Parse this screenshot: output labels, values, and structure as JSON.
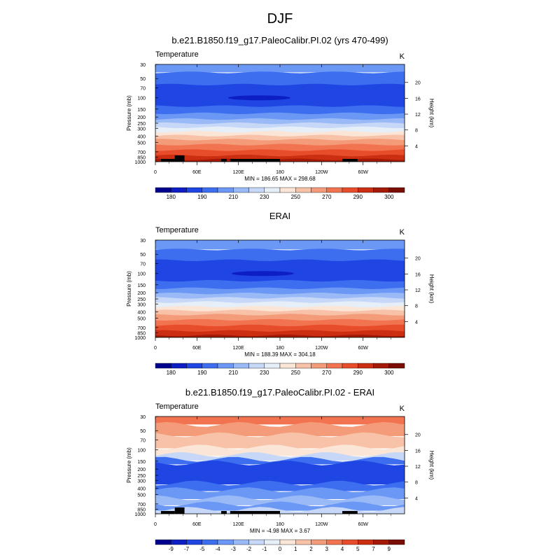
{
  "figure": {
    "title": "DJF"
  },
  "chart_data": [
    {
      "type": "heatmap",
      "title": "b.e21.B1850.f19_g17.PaleoCalibr.PI.02 (yrs 470-499)",
      "left_label": "Temperature",
      "right_label": "K",
      "ylabel": "Pressure (mb)",
      "y2label": "Height (km)",
      "x_ticks": [
        "0",
        "60E",
        "120E",
        "180",
        "120W",
        "60W"
      ],
      "y_ticks": [
        "30",
        "50",
        "70",
        "100",
        "150",
        "200",
        "250",
        "300",
        "400",
        "500",
        "700",
        "850",
        "1000"
      ],
      "y2_ticks": [
        "4",
        "8",
        "12",
        "16",
        "20"
      ],
      "stats": "MIN = 186.65   MAX = 298.68",
      "colorbar_labels": [
        "180",
        "190",
        "210",
        "230",
        "250",
        "270",
        "290",
        "300"
      ],
      "colorbar_colors": [
        "#00008e",
        "#0d1fc4",
        "#1f45e3",
        "#3d6ef0",
        "#6b97f5",
        "#9ab9f7",
        "#c6d7f7",
        "#e6eef8",
        "#fbe5d6",
        "#f7c2a8",
        "#f49b7a",
        "#f2734f",
        "#e84d2b",
        "#cc2e12",
        "#a31a08",
        "#7a0d04"
      ],
      "bands": [
        {
          "p_top": 30,
          "p_bot": 40,
          "color": "#6b97f5"
        },
        {
          "p_top": 40,
          "p_bot": 62,
          "color": "#3d6ef0"
        },
        {
          "p_top": 62,
          "p_bot": 135,
          "color": "#1f45e3"
        },
        {
          "p_top": 135,
          "p_bot": 175,
          "color": "#3d6ef0"
        },
        {
          "p_top": 175,
          "p_bot": 215,
          "color": "#6b97f5"
        },
        {
          "p_top": 215,
          "p_bot": 250,
          "color": "#9ab9f7"
        },
        {
          "p_top": 250,
          "p_bot": 290,
          "color": "#c6d7f7"
        },
        {
          "p_top": 290,
          "p_bot": 340,
          "color": "#e6eef8"
        },
        {
          "p_top": 340,
          "p_bot": 390,
          "color": "#fbe5d6"
        },
        {
          "p_top": 390,
          "p_bot": 450,
          "color": "#f7c2a8"
        },
        {
          "p_top": 450,
          "p_bot": 540,
          "color": "#f49b7a"
        },
        {
          "p_top": 540,
          "p_bot": 660,
          "color": "#f2734f"
        },
        {
          "p_top": 660,
          "p_bot": 800,
          "color": "#e84d2b"
        },
        {
          "p_top": 800,
          "p_bot": 920,
          "color": "#cc2e12"
        },
        {
          "p_top": 920,
          "p_bot": 1000,
          "color": "#a31a08"
        }
      ],
      "min_core": {
        "lon": 150,
        "p": 100,
        "lon_halfwidth": 45,
        "color": "#0d1fc4"
      },
      "terrain": true
    },
    {
      "type": "heatmap",
      "title": "ERAI",
      "left_label": "Temperature",
      "right_label": "K",
      "ylabel": "Pressure (mb)",
      "y2label": "Height (km)",
      "x_ticks": [
        "0",
        "60E",
        "120E",
        "180",
        "120W",
        "60W"
      ],
      "y_ticks": [
        "30",
        "50",
        "70",
        "100",
        "150",
        "200",
        "250",
        "300",
        "400",
        "500",
        "700",
        "850",
        "1000"
      ],
      "y2_ticks": [
        "4",
        "8",
        "12",
        "16",
        "20"
      ],
      "stats": "MIN = 188.39   MAX = 304.18",
      "colorbar_labels": [
        "180",
        "190",
        "210",
        "230",
        "250",
        "270",
        "290",
        "300"
      ],
      "colorbar_colors": [
        "#00008e",
        "#0d1fc4",
        "#1f45e3",
        "#3d6ef0",
        "#6b97f5",
        "#9ab9f7",
        "#c6d7f7",
        "#e6eef8",
        "#fbe5d6",
        "#f7c2a8",
        "#f49b7a",
        "#f2734f",
        "#e84d2b",
        "#cc2e12",
        "#a31a08",
        "#7a0d04"
      ],
      "bands": [
        {
          "p_top": 30,
          "p_bot": 42,
          "color": "#6b97f5"
        },
        {
          "p_top": 42,
          "p_bot": 62,
          "color": "#3d6ef0"
        },
        {
          "p_top": 62,
          "p_bot": 130,
          "color": "#1f45e3"
        },
        {
          "p_top": 130,
          "p_bot": 170,
          "color": "#3d6ef0"
        },
        {
          "p_top": 170,
          "p_bot": 205,
          "color": "#6b97f5"
        },
        {
          "p_top": 205,
          "p_bot": 240,
          "color": "#9ab9f7"
        },
        {
          "p_top": 240,
          "p_bot": 280,
          "color": "#c6d7f7"
        },
        {
          "p_top": 280,
          "p_bot": 330,
          "color": "#e6eef8"
        },
        {
          "p_top": 330,
          "p_bot": 380,
          "color": "#fbe5d6"
        },
        {
          "p_top": 380,
          "p_bot": 440,
          "color": "#f7c2a8"
        },
        {
          "p_top": 440,
          "p_bot": 530,
          "color": "#f49b7a"
        },
        {
          "p_top": 530,
          "p_bot": 650,
          "color": "#f2734f"
        },
        {
          "p_top": 650,
          "p_bot": 790,
          "color": "#e84d2b"
        },
        {
          "p_top": 790,
          "p_bot": 930,
          "color": "#cc2e12"
        },
        {
          "p_top": 930,
          "p_bot": 1000,
          "color": "#a31a08"
        }
      ],
      "min_core": {
        "lon": 155,
        "p": 100,
        "lon_halfwidth": 45,
        "color": "#0d1fc4"
      },
      "terrain": false
    },
    {
      "type": "heatmap",
      "title": "b.e21.B1850.f19_g17.PaleoCalibr.PI.02 - ERAI",
      "left_label": "Temperature",
      "right_label": "K",
      "ylabel": "Pressure (mb)",
      "y2label": "Height (km)",
      "x_ticks": [
        "0",
        "60E",
        "120E",
        "180",
        "120W",
        "60W"
      ],
      "y_ticks": [
        "30",
        "50",
        "70",
        "100",
        "150",
        "200",
        "250",
        "300",
        "400",
        "500",
        "700",
        "850",
        "1000"
      ],
      "y2_ticks": [
        "4",
        "8",
        "12",
        "16",
        "20"
      ],
      "stats": "MIN = -4.98   MAX =  3.67",
      "colorbar_labels": [
        "-9",
        "-7",
        "-5",
        "-4",
        "-3",
        "-2",
        "-1",
        "0",
        "1",
        "2",
        "3",
        "4",
        "5",
        "7",
        "9"
      ],
      "colorbar_colors": [
        "#00008e",
        "#0d1fc4",
        "#1f45e3",
        "#3d6ef0",
        "#6b97f5",
        "#9ab9f7",
        "#c6d7f7",
        "#e6eef8",
        "#fbe5d6",
        "#f7c2a8",
        "#f49b7a",
        "#f2734f",
        "#e84d2b",
        "#cc2e12",
        "#a31a08",
        "#7a0d04"
      ],
      "bands": [
        {
          "p_top": 30,
          "p_bot": 40,
          "color": "#f2734f"
        },
        {
          "p_top": 40,
          "p_bot": 58,
          "color": "#f49b7a"
        },
        {
          "p_top": 58,
          "p_bot": 90,
          "color": "#f7c2a8"
        },
        {
          "p_top": 90,
          "p_bot": 118,
          "color": "#fbe5d6"
        },
        {
          "p_top": 118,
          "p_bot": 140,
          "color": "#c6d7f7"
        },
        {
          "p_top": 140,
          "p_bot": 160,
          "color": "#3d6ef0"
        },
        {
          "p_top": 160,
          "p_bot": 330,
          "color": "#1f45e3"
        },
        {
          "p_top": 330,
          "p_bot": 420,
          "color": "#3d6ef0"
        },
        {
          "p_top": 420,
          "p_bot": 560,
          "color": "#6b97f5"
        },
        {
          "p_top": 560,
          "p_bot": 700,
          "color": "#9ab9f7"
        },
        {
          "p_top": 700,
          "p_bot": 850,
          "color": "#6b97f5"
        },
        {
          "p_top": 850,
          "p_bot": 1000,
          "color": "#c6d7f7"
        }
      ],
      "min_core": null,
      "terrain": true
    }
  ]
}
